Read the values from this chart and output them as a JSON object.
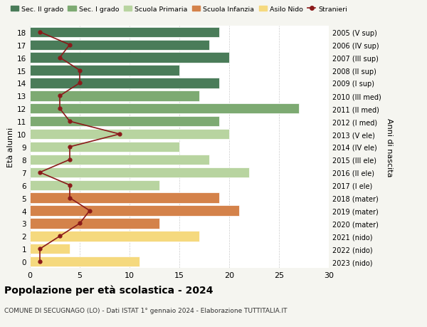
{
  "ages": [
    18,
    17,
    16,
    15,
    14,
    13,
    12,
    11,
    10,
    9,
    8,
    7,
    6,
    5,
    4,
    3,
    2,
    1,
    0
  ],
  "right_labels": [
    "2005 (V sup)",
    "2006 (IV sup)",
    "2007 (III sup)",
    "2008 (II sup)",
    "2009 (I sup)",
    "2010 (III med)",
    "2011 (II med)",
    "2012 (I med)",
    "2013 (V ele)",
    "2014 (IV ele)",
    "2015 (III ele)",
    "2016 (II ele)",
    "2017 (I ele)",
    "2018 (mater)",
    "2019 (mater)",
    "2020 (mater)",
    "2021 (nido)",
    "2022 (nido)",
    "2023 (nido)"
  ],
  "bar_values": [
    19,
    18,
    20,
    15,
    19,
    17,
    27,
    19,
    20,
    15,
    18,
    22,
    13,
    19,
    21,
    13,
    17,
    4,
    11
  ],
  "bar_colors": [
    "#4a7c59",
    "#4a7c59",
    "#4a7c59",
    "#4a7c59",
    "#4a7c59",
    "#7daa72",
    "#7daa72",
    "#7daa72",
    "#b8d4a0",
    "#b8d4a0",
    "#b8d4a0",
    "#b8d4a0",
    "#b8d4a0",
    "#d4824a",
    "#d4824a",
    "#d4824a",
    "#f5d97e",
    "#f5d97e",
    "#f5d97e"
  ],
  "stranieri_values": [
    1,
    4,
    3,
    5,
    5,
    3,
    3,
    4,
    9,
    4,
    4,
    1,
    4,
    4,
    6,
    5,
    3,
    1,
    1
  ],
  "stranieri_color": "#8b1a1a",
  "ylabel_left": "Età alunni",
  "ylabel_right": "Anni di nascita",
  "xlim": [
    0,
    30
  ],
  "xticks": [
    0,
    5,
    10,
    15,
    20,
    25,
    30
  ],
  "title": "Popolazione per età scolastica - 2024",
  "subtitle": "COMUNE DI SECUGNAGO (LO) - Dati ISTAT 1° gennaio 2024 - Elaborazione TUTTITALIA.IT",
  "legend_labels": [
    "Sec. II grado",
    "Sec. I grado",
    "Scuola Primaria",
    "Scuola Infanzia",
    "Asilo Nido",
    "Stranieri"
  ],
  "legend_colors": [
    "#4a7c59",
    "#7daa72",
    "#b8d4a0",
    "#d4824a",
    "#f5d97e",
    "#8b1a1a"
  ],
  "bg_color": "#f5f5f0",
  "plot_bg_color": "#ffffff",
  "grid_color": "#cccccc"
}
